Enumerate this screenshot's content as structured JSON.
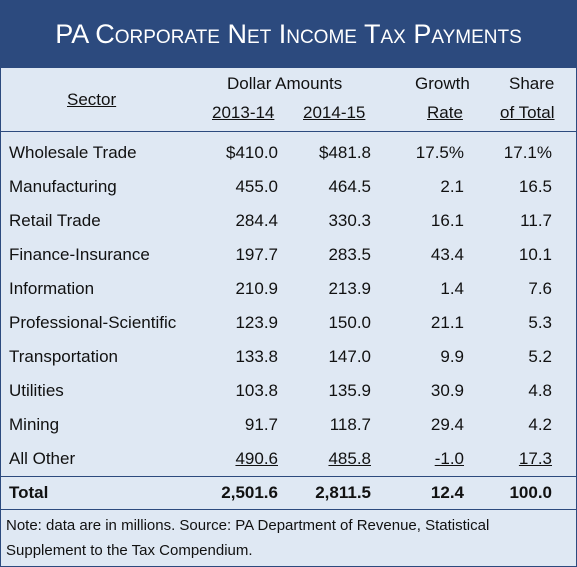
{
  "title": "PA Corporate Net Income Tax Payments",
  "header": {
    "sector": "Sector",
    "dollar_amounts": "Dollar Amounts",
    "year1": "2013-14",
    "year2": "2014-15",
    "growth": "Growth",
    "rate": "Rate",
    "share": "Share",
    "of_total": "of Total"
  },
  "rows": [
    [
      "Wholesale Trade",
      "$410.0",
      "$481.8",
      "17.5%",
      "17.1%"
    ],
    [
      "Manufacturing",
      "455.0",
      "464.5",
      "2.1",
      "16.5"
    ],
    [
      "Retail Trade",
      "284.4",
      "330.3",
      "16.1",
      "11.7"
    ],
    [
      "Finance-Insurance",
      "197.7",
      "283.5",
      "43.4",
      "10.1"
    ],
    [
      "Information",
      "210.9",
      "213.9",
      "1.4",
      "7.6"
    ],
    [
      "Professional-Scientific",
      "123.9",
      "150.0",
      "21.1",
      "5.3"
    ],
    [
      "Transportation",
      "133.8",
      "147.0",
      "9.9",
      "5.2"
    ],
    [
      "Utilities",
      "103.8",
      "135.9",
      "30.9",
      "4.8"
    ],
    [
      "Mining",
      "91.7",
      "118.7",
      "29.4",
      "4.2"
    ],
    [
      "All Other",
      "490.6",
      "485.8",
      "-1.0",
      "17.3"
    ]
  ],
  "total": [
    "Total",
    "2,501.6",
    "2,811.5",
    "12.4",
    "100.0"
  ],
  "note": "Note: data are in millions. Source: PA Department of Revenue, Statistical Supplement to the Tax Compendium."
}
